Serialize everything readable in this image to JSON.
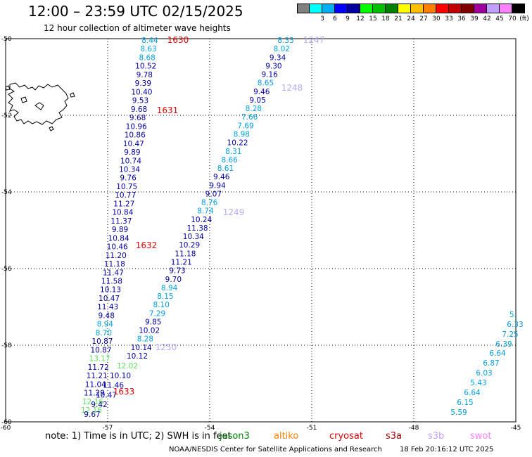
{
  "header": {
    "title": "12:00 – 23:59 UTC 02/15/2025",
    "subtitle": "12 hour collection of altimeter wave heights"
  },
  "scale": {
    "unit": "(ft)",
    "bins": [
      {
        "label": "",
        "color": "#808080"
      },
      {
        "label": "3",
        "color": "#00ffff"
      },
      {
        "label": "6",
        "color": "#00b0f0"
      },
      {
        "label": "9",
        "color": "#0000ff"
      },
      {
        "label": "12",
        "color": "#0000a0"
      },
      {
        "label": "15",
        "color": "#00ff00"
      },
      {
        "label": "18",
        "color": "#00c000"
      },
      {
        "label": "21",
        "color": "#008000"
      },
      {
        "label": "24",
        "color": "#ffff00"
      },
      {
        "label": "27",
        "color": "#ffc000"
      },
      {
        "label": "30",
        "color": "#ff8000"
      },
      {
        "label": "33",
        "color": "#ff0000"
      },
      {
        "label": "36",
        "color": "#c00000"
      },
      {
        "label": "39",
        "color": "#800000"
      },
      {
        "label": "42",
        "color": "#a000a0"
      },
      {
        "label": "45",
        "color": "#c0a0ff"
      },
      {
        "label": "70",
        "color": "#ff80ff"
      },
      {
        "label": "",
        "color": "#000000"
      }
    ]
  },
  "axes": {
    "lon": [
      {
        "label": "-60",
        "value": -60
      },
      {
        "label": "-57",
        "value": -57
      },
      {
        "label": "-54",
        "value": -54
      },
      {
        "label": "-51",
        "value": -51
      },
      {
        "label": "-48",
        "value": -48
      },
      {
        "label": "-45",
        "value": -45
      }
    ],
    "lat": [
      {
        "label": "-50",
        "value": -50
      },
      {
        "label": "-52",
        "value": -52
      },
      {
        "label": "-54",
        "value": -54
      },
      {
        "label": "-56",
        "value": -56
      },
      {
        "label": "-58",
        "value": -58
      },
      {
        "label": "-60",
        "value": -60
      }
    ]
  },
  "colors": {
    "dark_blue": "#0000a0",
    "light_blue": "#00a0e0",
    "light_green": "#60e060",
    "time_red": "#e00000",
    "time_lavender": "#b8a8ff"
  },
  "track_a": {
    "values": [
      {
        "text": "8.44",
        "c": "light_blue"
      },
      {
        "text": "8.63",
        "c": "light_blue"
      },
      {
        "text": "8.68",
        "c": "light_blue"
      },
      {
        "text": "10.52",
        "c": "dark_blue"
      },
      {
        "text": "9.78",
        "c": "dark_blue"
      },
      {
        "text": "9.39",
        "c": "dark_blue"
      },
      {
        "text": "10.40",
        "c": "dark_blue"
      },
      {
        "text": "9.53",
        "c": "dark_blue"
      },
      {
        "text": "9.68",
        "c": "dark_blue"
      },
      {
        "text": "9.68",
        "c": "dark_blue"
      },
      {
        "text": "10.96",
        "c": "dark_blue"
      },
      {
        "text": "10.86",
        "c": "dark_blue"
      },
      {
        "text": "10.47",
        "c": "dark_blue"
      },
      {
        "text": "9.89",
        "c": "dark_blue"
      },
      {
        "text": "10.74",
        "c": "dark_blue"
      },
      {
        "text": "10.34",
        "c": "dark_blue"
      },
      {
        "text": "9.76",
        "c": "dark_blue"
      },
      {
        "text": "10.75",
        "c": "dark_blue"
      },
      {
        "text": "10.77",
        "c": "dark_blue"
      },
      {
        "text": "11.27",
        "c": "dark_blue"
      },
      {
        "text": "10.84",
        "c": "dark_blue"
      },
      {
        "text": "11.37",
        "c": "dark_blue"
      },
      {
        "text": "9.89",
        "c": "dark_blue"
      },
      {
        "text": "10.84",
        "c": "dark_blue"
      },
      {
        "text": "10.46",
        "c": "dark_blue"
      },
      {
        "text": "11.20",
        "c": "dark_blue"
      },
      {
        "text": "11.18",
        "c": "dark_blue"
      },
      {
        "text": "11.47",
        "c": "dark_blue"
      },
      {
        "text": "11.58",
        "c": "dark_blue"
      },
      {
        "text": "10.13",
        "c": "dark_blue"
      },
      {
        "text": "10.47",
        "c": "dark_blue"
      },
      {
        "text": "11.43",
        "c": "dark_blue"
      },
      {
        "text": "9.48",
        "c": "dark_blue"
      },
      {
        "text": "8.94",
        "c": "light_blue"
      },
      {
        "text": "8.70",
        "c": "light_blue"
      },
      {
        "text": "10.87",
        "c": "dark_blue"
      },
      {
        "text": "10.87",
        "c": "dark_blue"
      },
      {
        "text": "13.17",
        "c": "light_green"
      },
      {
        "text": "11.72",
        "c": "dark_blue"
      },
      {
        "text": "11.21",
        "c": "dark_blue"
      },
      {
        "text": "11.04",
        "c": "dark_blue"
      },
      {
        "text": "11.29",
        "c": "dark_blue"
      },
      {
        "text": "12.16",
        "c": "light_green"
      },
      {
        "text": "12.16",
        "c": "light_green"
      }
    ],
    "times": [
      "1630",
      "1631",
      "1632"
    ]
  },
  "track_a2": {
    "values": [
      {
        "text": "12.02",
        "c": "light_green"
      },
      {
        "text": "10.10",
        "c": "dark_blue"
      },
      {
        "text": "11.46",
        "c": "dark_blue"
      },
      {
        "text": "10.47",
        "c": "dark_blue"
      },
      {
        "text": "9.42",
        "c": "dark_blue"
      },
      {
        "text": "9.67",
        "c": "dark_blue"
      }
    ],
    "time": "1633"
  },
  "track_b": {
    "values": [
      {
        "text": "8.33",
        "c": "light_blue"
      },
      {
        "text": "8.02",
        "c": "light_blue"
      },
      {
        "text": "9.34",
        "c": "dark_blue"
      },
      {
        "text": "9.30",
        "c": "dark_blue"
      },
      {
        "text": "9.16",
        "c": "dark_blue"
      },
      {
        "text": "8.65",
        "c": "light_blue"
      },
      {
        "text": "9.46",
        "c": "dark_blue"
      },
      {
        "text": "9.05",
        "c": "dark_blue"
      },
      {
        "text": "8.28",
        "c": "light_blue"
      },
      {
        "text": "7.66",
        "c": "light_blue"
      },
      {
        "text": "7.69",
        "c": "light_blue"
      },
      {
        "text": "8.98",
        "c": "light_blue"
      },
      {
        "text": "10.22",
        "c": "dark_blue"
      },
      {
        "text": "8.31",
        "c": "light_blue"
      },
      {
        "text": "8.66",
        "c": "light_blue"
      },
      {
        "text": "8.61",
        "c": "light_blue"
      },
      {
        "text": "9.46",
        "c": "dark_blue"
      },
      {
        "text": "9.94",
        "c": "dark_blue"
      },
      {
        "text": "9.07",
        "c": "dark_blue"
      },
      {
        "text": "8.76",
        "c": "light_blue"
      },
      {
        "text": "8.74",
        "c": "light_blue"
      },
      {
        "text": "10.24",
        "c": "dark_blue"
      },
      {
        "text": "11.38",
        "c": "dark_blue"
      },
      {
        "text": "10.34",
        "c": "dark_blue"
      },
      {
        "text": "10.29",
        "c": "dark_blue"
      },
      {
        "text": "11.18",
        "c": "dark_blue"
      },
      {
        "text": "11.21",
        "c": "dark_blue"
      },
      {
        "text": "9.73",
        "c": "dark_blue"
      },
      {
        "text": "9.70",
        "c": "dark_blue"
      },
      {
        "text": "8.94",
        "c": "light_blue"
      },
      {
        "text": "8.15",
        "c": "light_blue"
      },
      {
        "text": "8.10",
        "c": "light_blue"
      },
      {
        "text": "7.29",
        "c": "light_blue"
      },
      {
        "text": "9.85",
        "c": "dark_blue"
      },
      {
        "text": "10.02",
        "c": "dark_blue"
      },
      {
        "text": "8.28",
        "c": "light_blue"
      },
      {
        "text": "10.14",
        "c": "dark_blue"
      },
      {
        "text": "10.12",
        "c": "dark_blue"
      }
    ],
    "times": [
      "1247",
      "1248",
      "1249",
      "1250"
    ]
  },
  "track_c": {
    "values": [
      {
        "text": "5.",
        "c": "light_blue"
      },
      {
        "text": "6.33",
        "c": "light_blue"
      },
      {
        "text": "7.25",
        "c": "light_blue"
      },
      {
        "text": "6.39",
        "c": "light_blue"
      },
      {
        "text": "6.64",
        "c": "light_blue"
      },
      {
        "text": "6.87",
        "c": "light_blue"
      },
      {
        "text": "6.03",
        "c": "light_blue"
      },
      {
        "text": "5.43",
        "c": "light_blue"
      },
      {
        "text": "6.64",
        "c": "light_blue"
      },
      {
        "text": "6.15",
        "c": "light_blue"
      },
      {
        "text": "5.59",
        "c": "light_blue"
      }
    ]
  },
  "footer": {
    "note": "note:  1) Time is in UTC;  2) SWH is in feet",
    "satellites": [
      {
        "name": "jason3",
        "color": "#008000"
      },
      {
        "name": "altiko",
        "color": "#ff8000"
      },
      {
        "name": "cryosat",
        "color": "#e00000"
      },
      {
        "name": "s3a",
        "color": "#a00000"
      },
      {
        "name": "s3b",
        "color": "#c0a0ff"
      },
      {
        "name": "swot",
        "color": "#ff80ff"
      }
    ],
    "credit": "NOAA/NESDIS Center for Satellite Applications and Research",
    "stamp": "18 Feb 20:16:12 UTC 2025"
  }
}
